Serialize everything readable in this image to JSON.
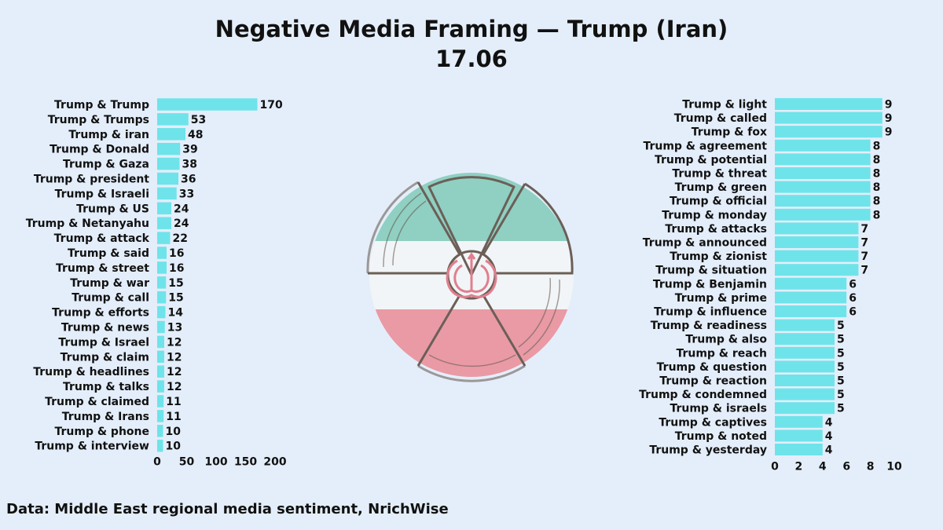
{
  "title": "Negative Media Framing — Trump (Iran)",
  "subtitle": "17.06",
  "footer": "Data: Middle East regional media sentiment, NrichWise",
  "colors": {
    "bar": "#6fe3ea",
    "background": "#e4eefa",
    "flag_green": "#8fd0c2",
    "flag_white": "#f2f5f7",
    "flag_red": "#e99aa5",
    "emblem_outline": "#6b5f57"
  },
  "emblem_icon": "iran-flag-radiation-emblem",
  "chart_data": [
    {
      "type": "bar",
      "orientation": "horizontal",
      "categories": [
        "Trump & Trump",
        "Trump & Trumps",
        "Trump & iran",
        "Trump & Donald",
        "Trump & Gaza",
        "Trump & president",
        "Trump & Israeli",
        "Trump & US",
        "Trump & Netanyahu",
        "Trump & attack",
        "Trump & said",
        "Trump & street",
        "Trump & war",
        "Trump & call",
        "Trump & efforts",
        "Trump & news",
        "Trump & Israel",
        "Trump & claim",
        "Trump & headlines",
        "Trump & talks",
        "Trump & claimed",
        "Trump & Irans",
        "Trump & phone",
        "Trump & interview"
      ],
      "values": [
        170,
        53,
        48,
        39,
        38,
        36,
        33,
        24,
        24,
        22,
        16,
        16,
        15,
        15,
        14,
        13,
        12,
        12,
        12,
        12,
        11,
        11,
        10,
        10
      ],
      "xlim": [
        0,
        200
      ],
      "ticks": [
        "0",
        "50",
        "100",
        "150",
        "200"
      ]
    },
    {
      "type": "bar",
      "orientation": "horizontal",
      "categories": [
        "Trump & light",
        "Trump & called",
        "Trump & fox",
        "Trump & agreement",
        "Trump & potential",
        "Trump & threat",
        "Trump & green",
        "Trump & official",
        "Trump & monday",
        "Trump & attacks",
        "Trump & announced",
        "Trump & zionist",
        "Trump & situation",
        "Trump & Benjamin",
        "Trump & prime",
        "Trump & influence",
        "Trump & readiness",
        "Trump & also",
        "Trump & reach",
        "Trump & question",
        "Trump & reaction",
        "Trump & condemned",
        "Trump & israels",
        "Trump & captives",
        "Trump & noted",
        "Trump & yesterday"
      ],
      "values": [
        9,
        9,
        9,
        8,
        8,
        8,
        8,
        8,
        8,
        7,
        7,
        7,
        7,
        6,
        6,
        6,
        5,
        5,
        5,
        5,
        5,
        5,
        5,
        4,
        4,
        4
      ],
      "xlim": [
        0,
        10
      ],
      "ticks": [
        "0",
        "2",
        "4",
        "6",
        "8",
        "10"
      ]
    }
  ]
}
